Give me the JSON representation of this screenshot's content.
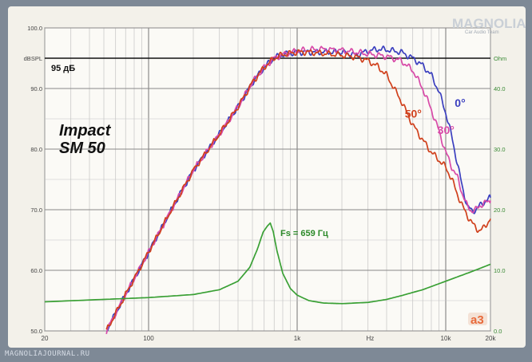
{
  "brand": {
    "watermark": "MAGNOLIA",
    "watermark_sub": "Car Audio Team",
    "footer": "MAGNOLIAJOURNAL.RU"
  },
  "colors": {
    "line_0": "#3b3fbf",
    "line_30": "#d84aa8",
    "line_50": "#d0401c",
    "impedance": "#3aa035",
    "ref_line": "#111111",
    "logo": "#e86a3a"
  },
  "chart_data": {
    "type": "line",
    "title": "Impact\nSM 50",
    "title_lines": [
      "Impact",
      "SM 50"
    ],
    "x_scale": "log",
    "xlim": [
      20,
      20000
    ],
    "x_ticks": [
      {
        "value": 20,
        "label": "20"
      },
      {
        "value": 100,
        "label": "100"
      },
      {
        "value": 1000,
        "label": "1k"
      },
      {
        "value": 3100,
        "label": "Hz"
      },
      {
        "value": 10000,
        "label": "10k"
      },
      {
        "value": 20000,
        "label": "20k"
      }
    ],
    "y_left": {
      "unit_label": "dBSPL",
      "ylim": [
        50,
        100
      ],
      "ticks": [
        {
          "value": 100,
          "label": "100.0"
        },
        {
          "value": 95,
          "label": "dBSPL"
        },
        {
          "value": 90,
          "label": "90.0"
        },
        {
          "value": 80,
          "label": "80.0"
        },
        {
          "value": 70,
          "label": "70.0"
        },
        {
          "value": 60,
          "label": "60.0"
        },
        {
          "value": 50,
          "label": "50.0"
        }
      ]
    },
    "y_right": {
      "unit_label": "Ohm",
      "ylim": [
        0,
        50
      ],
      "ticks": [
        {
          "value": 45,
          "label": "Ohm"
        },
        {
          "value": 40,
          "label": "40.0"
        },
        {
          "value": 30,
          "label": "30.0"
        },
        {
          "value": 20,
          "label": "20.0"
        },
        {
          "value": 10,
          "label": "10.0"
        },
        {
          "value": 0,
          "label": "0.0"
        }
      ]
    },
    "reference_line": {
      "value": 95,
      "label": "95 дБ"
    },
    "grid": true,
    "annotations": [
      {
        "text": "Fs = 659 Гц",
        "x": 659,
        "y": 66.8,
        "axis": "left"
      }
    ],
    "series": [
      {
        "name": "0°",
        "axis": "left",
        "color": "#3b3fbf",
        "label_at": {
          "x": 11500,
          "y": 87.0
        },
        "x": [
          52,
          70,
          100,
          150,
          200,
          300,
          400,
          500,
          600,
          700,
          800,
          1000,
          1200,
          1500,
          2000,
          2500,
          3000,
          3500,
          4000,
          5000,
          6000,
          7000,
          8000,
          9000,
          10000,
          11000,
          12000,
          13000,
          14000,
          15000,
          16000,
          17000,
          18000,
          20000
        ],
        "y": [
          50,
          56,
          63,
          71,
          76.5,
          82.5,
          87,
          91,
          93.5,
          95,
          95.6,
          96,
          96,
          96,
          96,
          95.5,
          96.2,
          96.5,
          96.4,
          96,
          95,
          93.8,
          92.2,
          89.5,
          86,
          82,
          77.5,
          73.5,
          70.5,
          69.8,
          70,
          70.7,
          71.2,
          72
        ]
      },
      {
        "name": "30°",
        "axis": "left",
        "color": "#d84aa8",
        "label_at": {
          "x": 8800,
          "y": 82.5
        },
        "x": [
          52,
          70,
          100,
          150,
          200,
          300,
          400,
          500,
          600,
          700,
          800,
          1000,
          1200,
          1500,
          2000,
          2500,
          3000,
          3500,
          4000,
          5000,
          6000,
          7000,
          8000,
          9000,
          10000,
          11000,
          12000,
          13000,
          14000,
          15000,
          16000,
          17000,
          18000,
          20000
        ],
        "y": [
          50,
          56,
          63,
          71,
          76.5,
          82.5,
          87,
          91,
          93.5,
          95,
          95.6,
          96.2,
          96.4,
          96.5,
          96.3,
          96,
          95.7,
          95.5,
          95.3,
          94.6,
          93,
          90,
          86.5,
          83,
          79.5,
          77,
          75.3,
          72.5,
          70.5,
          69.8,
          70,
          70.7,
          71,
          71.5
        ]
      },
      {
        "name": "50°",
        "axis": "left",
        "color": "#d0401c",
        "label_at": {
          "x": 5300,
          "y": 85.2
        },
        "x": [
          52,
          70,
          100,
          150,
          200,
          300,
          400,
          500,
          600,
          700,
          800,
          1000,
          1200,
          1500,
          2000,
          2500,
          3000,
          3500,
          4000,
          5000,
          6000,
          7000,
          8000,
          9000,
          10000,
          11000,
          12000,
          13000,
          14000,
          15000,
          16000,
          17000,
          18000,
          20000
        ],
        "y": [
          50,
          56,
          63,
          71,
          76.5,
          82.5,
          87,
          91,
          93.5,
          95,
          95.6,
          96,
          96,
          95.8,
          95.5,
          95.2,
          94.6,
          93.6,
          92.2,
          88,
          84,
          81.5,
          79.5,
          78.2,
          77,
          75,
          72.5,
          70.5,
          69,
          67.8,
          67,
          66.5,
          67,
          68.5
        ]
      },
      {
        "name": "Impedance",
        "axis": "right",
        "color": "#3aa035",
        "x": [
          20,
          50,
          100,
          200,
          300,
          400,
          480,
          540,
          590,
          630,
          659,
          690,
          730,
          800,
          900,
          1000,
          1200,
          1500,
          2000,
          3000,
          4000,
          5000,
          7000,
          10000,
          15000,
          20000
        ],
        "y": [
          4.8,
          5.2,
          5.5,
          6.0,
          6.8,
          8.2,
          10.5,
          13.5,
          16.3,
          17.3,
          17.8,
          16.4,
          13.3,
          9.5,
          7.0,
          5.9,
          5.0,
          4.6,
          4.5,
          4.7,
          5.2,
          5.8,
          6.8,
          8.2,
          9.8,
          11.0
        ]
      }
    ]
  }
}
